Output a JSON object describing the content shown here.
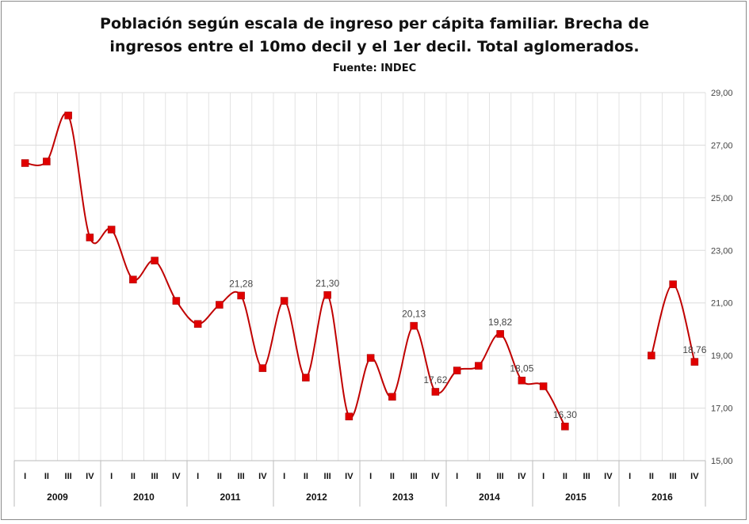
{
  "chart_data": {
    "type": "line",
    "title_line1": "Población según escala de ingreso per cápita familiar. Brecha de",
    "title_line2": "ingresos entre el 10mo decil y el 1er decil. Total aglomerados.",
    "subtitle": "Fuente: INDEC",
    "xlabel": "",
    "ylabel": "",
    "ylim": [
      15,
      29
    ],
    "yticks": [
      "15,00",
      "17,00",
      "19,00",
      "21,00",
      "23,00",
      "25,00",
      "27,00",
      "29,00"
    ],
    "ytick_values": [
      15,
      17,
      19,
      21,
      23,
      25,
      27,
      29
    ],
    "y_axis_side": "right",
    "grid": true,
    "legend": "none",
    "smoothed": true,
    "marker": "square",
    "line_color": "#c00000",
    "marker_color": "#e00000",
    "years": [
      "2009",
      "2010",
      "2011",
      "2012",
      "2013",
      "2014",
      "2015",
      "2016"
    ],
    "quarters": [
      "I",
      "II",
      "III",
      "IV"
    ],
    "series": [
      {
        "values": [
          26.32,
          26.38,
          28.13,
          23.49,
          23.79,
          21.89,
          22.61,
          21.08,
          20.2,
          20.93,
          21.28,
          18.52,
          21.08,
          18.16,
          21.3,
          16.68,
          18.91,
          17.43,
          20.13,
          17.62,
          18.43,
          18.61,
          19.82,
          18.05,
          17.83,
          16.3,
          null,
          null,
          null,
          19.0,
          21.71,
          18.76
        ],
        "data_labels": {
          "10": "21,28",
          "14": "21,30",
          "18": "20,13",
          "19": "17,62",
          "22": "19,82",
          "23": "18,05",
          "25": "16,30",
          "31": "18,76"
        }
      }
    ]
  }
}
